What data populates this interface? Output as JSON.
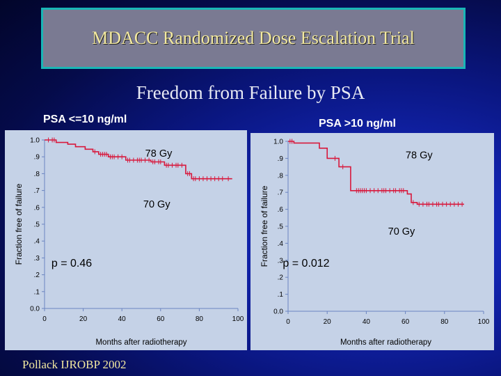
{
  "header": {
    "title": "MDACC Randomized Dose Escalation Trial"
  },
  "subtitle": "Freedom from Failure by PSA",
  "footer": "Pollack IJROBP 2002",
  "colors": {
    "curve": "#d8183c",
    "axis": "#6a84c0",
    "text": "#000000"
  },
  "chart_data": [
    {
      "type": "line",
      "panel_label": "PSA <=10 ng/ml",
      "xlabel": "Months after radiotherapy",
      "ylabel": "Fraction free of failure",
      "xlim": [
        0,
        100
      ],
      "ylim": [
        0,
        1
      ],
      "xticks": [
        "0",
        "20",
        "40",
        "60",
        "80",
        "100"
      ],
      "yticks": [
        "0.0",
        ".1",
        ".2",
        ".3",
        ".4",
        ".5",
        ".6",
        ".7",
        ".8",
        ".9",
        "1.0"
      ],
      "p_value": "p = 0.46",
      "series": [
        {
          "name": "78 Gy",
          "label": "78 Gy",
          "steps": [
            [
              0,
              1.0
            ],
            [
              6,
              1.0
            ],
            [
              6,
              0.985
            ],
            [
              12,
              0.985
            ],
            [
              12,
              0.975
            ],
            [
              16,
              0.975
            ],
            [
              16,
              0.96
            ],
            [
              21,
              0.96
            ],
            [
              21,
              0.945
            ],
            [
              25,
              0.945
            ],
            [
              25,
              0.93
            ],
            [
              28,
              0.93
            ],
            [
              28,
              0.915
            ],
            [
              33,
              0.915
            ],
            [
              33,
              0.9
            ],
            [
              42,
              0.9
            ],
            [
              42,
              0.88
            ],
            [
              55,
              0.88
            ],
            [
              55,
              0.87
            ],
            [
              62,
              0.87
            ],
            [
              62,
              0.85
            ],
            [
              73,
              0.85
            ],
            [
              73,
              0.8
            ],
            [
              76,
              0.8
            ],
            [
              76,
              0.77
            ],
            [
              97,
              0.77
            ]
          ],
          "censors": [
            2,
            4,
            5,
            26,
            29,
            30,
            31,
            32,
            34,
            35,
            36,
            38,
            40,
            43,
            44,
            46,
            48,
            49,
            50,
            52,
            54,
            56,
            57,
            59,
            60,
            63,
            64,
            66,
            68,
            69,
            71,
            74,
            75,
            77,
            78,
            80,
            82,
            84,
            86,
            88,
            90,
            92,
            95
          ]
        }
      ],
      "annotations": [
        {
          "text": "78 Gy",
          "x": 59,
          "y": 0.9
        },
        {
          "text": "70 Gy",
          "x": 58,
          "y": 0.6
        }
      ]
    },
    {
      "type": "line",
      "panel_label": "PSA >10 ng/ml",
      "xlabel": "Months after radiotherapy",
      "ylabel": "Fraction free of failure",
      "xlim": [
        0,
        100
      ],
      "ylim": [
        0,
        1
      ],
      "xticks": [
        "0",
        "20",
        "40",
        "60",
        "80",
        "100"
      ],
      "yticks": [
        "0.0",
        ".1",
        ".2",
        ".3",
        ".4",
        ".5",
        ".6",
        ".7",
        ".8",
        ".9",
        "1.0"
      ],
      "p_value": "p = 0.012",
      "series": [
        {
          "name": "78 Gy",
          "label": "78 Gy",
          "steps": [
            [
              0,
              1.0
            ],
            [
              3,
              1.0
            ],
            [
              3,
              0.99
            ],
            [
              16,
              0.99
            ],
            [
              16,
              0.96
            ],
            [
              20,
              0.96
            ],
            [
              20,
              0.9
            ],
            [
              26,
              0.9
            ],
            [
              26,
              0.85
            ],
            [
              32,
              0.85
            ],
            [
              32,
              0.71
            ],
            [
              61,
              0.71
            ],
            [
              61,
              0.69
            ],
            [
              63,
              0.69
            ],
            [
              63,
              0.64
            ],
            [
              66,
              0.64
            ],
            [
              66,
              0.63
            ],
            [
              90,
              0.63
            ]
          ],
          "censors": [
            1,
            2,
            24,
            28,
            35,
            36,
            37,
            38,
            39,
            40,
            42,
            44,
            46,
            48,
            49,
            50,
            52,
            54,
            55,
            57,
            58,
            59,
            64,
            67,
            69,
            71,
            72,
            74,
            76,
            77,
            79,
            81,
            83,
            85,
            87,
            89
          ]
        }
      ],
      "annotations": [
        {
          "text": "78 Gy",
          "x": 67,
          "y": 0.9
        },
        {
          "text": "70 Gy",
          "x": 58,
          "y": 0.45
        }
      ]
    }
  ]
}
